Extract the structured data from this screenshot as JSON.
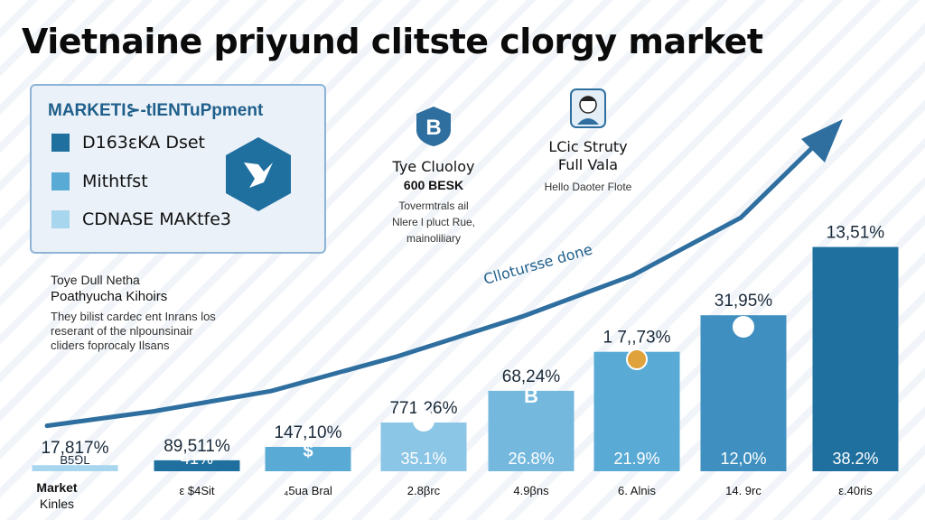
{
  "title": "Vietnaine priyund clitste clorgy market",
  "legend": {
    "title": "MARKETI⊱-tlENTuPpment",
    "items": [
      {
        "label": "D163εKA Dset",
        "color": "#1f6f9f"
      },
      {
        "label": "Mithtfst",
        "color": "#5aaad6"
      },
      {
        "label": "CDNASE MAKtfe3",
        "color": "#a9d6ef"
      }
    ]
  },
  "info_left": {
    "title": "Tye Cluoloy",
    "subtitle": "600 BESK",
    "lines": [
      "Tovermtrals ail",
      "Nlere l pluct Rue,",
      "mainoliliary"
    ],
    "icon": "b-badge-icon"
  },
  "info_right": {
    "title": "LCic Struty",
    "subtitle": "Full Vala",
    "line": "Hello Daoter Flote",
    "icon": "person-avatar-icon"
  },
  "notes": {
    "line1": "Toye Dull Netha",
    "line2": "Poathyucha Kihoirs",
    "body": [
      "They bilist cardec ent Inrans los",
      "reserant of the nlpounsinair",
      "cliders foprocaly Ilsans"
    ]
  },
  "trend_label": "Cllotursse done",
  "colors": {
    "accent": "#1f6f9f",
    "bar": "#1f6f9f",
    "arrow": "#2e6fa0"
  },
  "chart_data": {
    "type": "bar",
    "categories": [
      "Market Kinles",
      "ε $4Sit",
      "₄5ua Bral",
      "2.8βrc",
      "4.9βns",
      "6. Alnis",
      "14. 9rc",
      "ε.40ris"
    ],
    "values": [
      2.5,
      4.5,
      10,
      20,
      33,
      49,
      64,
      92
    ],
    "top_labels": [
      "17,817%",
      "89,511%",
      "147,10%",
      "771,26%",
      "68,24%",
      "1 7,,73%",
      "31,95%",
      "13,51%"
    ],
    "inner_labels": [
      "B5⅁L",
      "41%",
      "",
      "35.1%",
      "26.8%",
      "21.9%",
      "12,0%",
      "38.2%"
    ],
    "bar_colors": [
      "#a9d6ef",
      "#1f6f9f",
      "#5aaad6",
      "#8cc6e6",
      "#74b8de",
      "#5aaad6",
      "#3f8fc0",
      "#1f6f9f"
    ],
    "bar_icons": [
      "",
      "",
      "dollar",
      "coin",
      "b-letter",
      "coin",
      "coin",
      ""
    ],
    "trend": [
      2,
      7,
      14,
      26,
      40,
      54,
      74,
      100
    ],
    "ylim": [
      0,
      100
    ]
  }
}
